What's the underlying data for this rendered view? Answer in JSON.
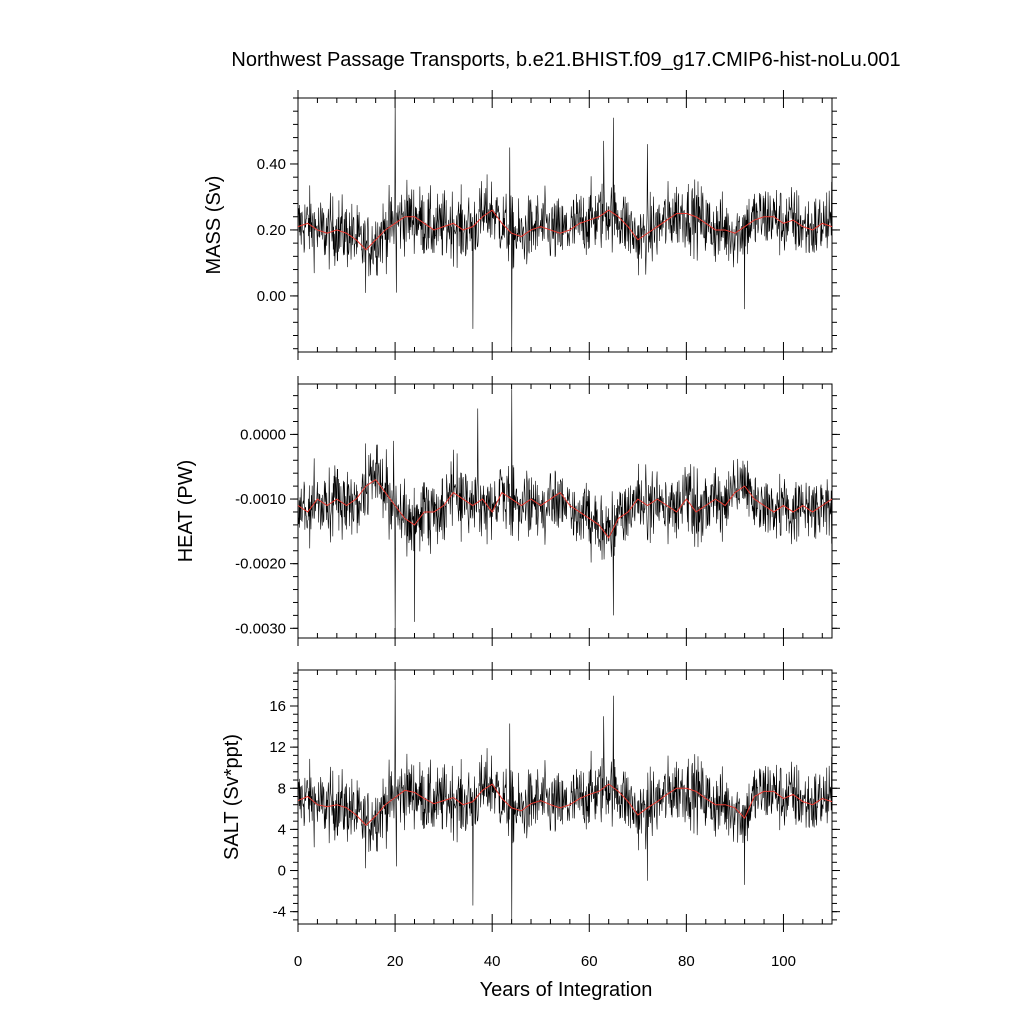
{
  "title": "Northwest Passage Transports, b.e21.BHIST.f09_g17.CMIP6-hist-noLu.001",
  "chart_data": {
    "type": "line",
    "xlabel": "Years of Integration",
    "xlim": [
      0,
      110
    ],
    "x_ticks": [
      0,
      20,
      40,
      60,
      80,
      100
    ],
    "x_tick_labels": [
      "0",
      "20",
      "40",
      "60",
      "80",
      "100"
    ],
    "series_colors": {
      "monthly": "#000000",
      "annual_mean": "#e8382f"
    },
    "panels": [
      {
        "name": "mass",
        "ylabel": "MASS (Sv)",
        "ylim": [
          -0.17,
          0.6
        ],
        "y_ticks": [
          0.0,
          0.2,
          0.4
        ],
        "y_tick_labels": [
          "0.00",
          "0.20",
          "0.40"
        ],
        "mean": 0.205,
        "noise": 0.075,
        "annual_mean": [
          [
            0,
            0.21
          ],
          [
            2,
            0.22
          ],
          [
            4,
            0.2
          ],
          [
            6,
            0.19
          ],
          [
            8,
            0.2
          ],
          [
            10,
            0.19
          ],
          [
            12,
            0.17
          ],
          [
            14,
            0.14
          ],
          [
            16,
            0.17
          ],
          [
            18,
            0.2
          ],
          [
            20,
            0.22
          ],
          [
            22,
            0.24
          ],
          [
            24,
            0.24
          ],
          [
            26,
            0.22
          ],
          [
            28,
            0.2
          ],
          [
            30,
            0.21
          ],
          [
            32,
            0.22
          ],
          [
            34,
            0.2
          ],
          [
            36,
            0.21
          ],
          [
            38,
            0.24
          ],
          [
            40,
            0.26
          ],
          [
            42,
            0.22
          ],
          [
            44,
            0.19
          ],
          [
            46,
            0.18
          ],
          [
            48,
            0.2
          ],
          [
            50,
            0.21
          ],
          [
            52,
            0.2
          ],
          [
            54,
            0.19
          ],
          [
            56,
            0.2
          ],
          [
            58,
            0.22
          ],
          [
            60,
            0.23
          ],
          [
            62,
            0.24
          ],
          [
            64,
            0.26
          ],
          [
            66,
            0.24
          ],
          [
            68,
            0.21
          ],
          [
            70,
            0.17
          ],
          [
            72,
            0.19
          ],
          [
            74,
            0.21
          ],
          [
            76,
            0.23
          ],
          [
            78,
            0.25
          ],
          [
            80,
            0.25
          ],
          [
            82,
            0.24
          ],
          [
            84,
            0.22
          ],
          [
            86,
            0.2
          ],
          [
            88,
            0.2
          ],
          [
            90,
            0.19
          ],
          [
            92,
            0.21
          ],
          [
            94,
            0.23
          ],
          [
            96,
            0.24
          ],
          [
            98,
            0.24
          ],
          [
            100,
            0.22
          ],
          [
            102,
            0.23
          ],
          [
            104,
            0.21
          ],
          [
            106,
            0.2
          ],
          [
            108,
            0.22
          ],
          [
            110,
            0.21
          ]
        ],
        "spikes": [
          [
            20,
            0.6
          ],
          [
            20.3,
            0.01
          ],
          [
            44,
            -0.17
          ],
          [
            43.6,
            0.45
          ],
          [
            36,
            -0.1
          ],
          [
            65,
            0.54
          ],
          [
            63,
            0.47
          ],
          [
            92,
            -0.04
          ],
          [
            72,
            0.46
          ]
        ]
      },
      {
        "name": "heat",
        "ylabel": "HEAT (PW)",
        "ylim": [
          -0.00315,
          0.00078
        ],
        "y_ticks": [
          0.0,
          -0.001,
          -0.002,
          -0.003
        ],
        "y_tick_labels": [
          "0.0000",
          "-0.0010",
          "-0.0020",
          "-0.0030"
        ],
        "mean": -0.00108,
        "noise": 0.00038,
        "annual_mean": [
          [
            0,
            -0.0011
          ],
          [
            2,
            -0.0012
          ],
          [
            4,
            -0.001
          ],
          [
            6,
            -0.0011
          ],
          [
            8,
            -0.001
          ],
          [
            10,
            -0.0011
          ],
          [
            12,
            -0.001
          ],
          [
            14,
            -0.0008
          ],
          [
            16,
            -0.0007
          ],
          [
            18,
            -0.0009
          ],
          [
            20,
            -0.0011
          ],
          [
            22,
            -0.0013
          ],
          [
            24,
            -0.0014
          ],
          [
            26,
            -0.0012
          ],
          [
            28,
            -0.0012
          ],
          [
            30,
            -0.0011
          ],
          [
            32,
            -0.0009
          ],
          [
            34,
            -0.001
          ],
          [
            36,
            -0.0011
          ],
          [
            38,
            -0.001
          ],
          [
            40,
            -0.0012
          ],
          [
            42,
            -0.0009
          ],
          [
            44,
            -0.001
          ],
          [
            46,
            -0.0011
          ],
          [
            48,
            -0.001
          ],
          [
            50,
            -0.0011
          ],
          [
            52,
            -0.001
          ],
          [
            54,
            -0.0009
          ],
          [
            56,
            -0.0011
          ],
          [
            58,
            -0.0012
          ],
          [
            60,
            -0.0013
          ],
          [
            62,
            -0.0014
          ],
          [
            64,
            -0.0016
          ],
          [
            66,
            -0.0013
          ],
          [
            68,
            -0.0012
          ],
          [
            70,
            -0.001
          ],
          [
            72,
            -0.0011
          ],
          [
            74,
            -0.001
          ],
          [
            76,
            -0.0011
          ],
          [
            78,
            -0.0012
          ],
          [
            80,
            -0.001
          ],
          [
            82,
            -0.0012
          ],
          [
            84,
            -0.0011
          ],
          [
            86,
            -0.001
          ],
          [
            88,
            -0.0011
          ],
          [
            90,
            -0.0009
          ],
          [
            92,
            -0.0008
          ],
          [
            94,
            -0.001
          ],
          [
            96,
            -0.0011
          ],
          [
            98,
            -0.0012
          ],
          [
            100,
            -0.0011
          ],
          [
            102,
            -0.0012
          ],
          [
            104,
            -0.0011
          ],
          [
            106,
            -0.0012
          ],
          [
            108,
            -0.0011
          ],
          [
            110,
            -0.001
          ]
        ],
        "spikes": [
          [
            20,
            -0.00315
          ],
          [
            19.7,
            -0.0001
          ],
          [
            44,
            0.0007
          ],
          [
            43.6,
            -0.0014
          ],
          [
            36,
            -0.0013
          ],
          [
            37,
            0.0004
          ],
          [
            65,
            -0.0028
          ],
          [
            24,
            -0.0029
          ]
        ]
      },
      {
        "name": "salt",
        "ylabel": "SALT (Sv*ppt)",
        "ylim": [
          -5.2,
          19.5
        ],
        "y_ticks": [
          -4,
          0,
          4,
          8,
          12,
          16
        ],
        "y_tick_labels": [
          "-4",
          "0",
          "4",
          "8",
          "12",
          "16"
        ],
        "mean": 6.6,
        "noise": 2.4,
        "annual_mean": [
          [
            0,
            6.8
          ],
          [
            2,
            7.2
          ],
          [
            4,
            6.4
          ],
          [
            6,
            6.2
          ],
          [
            8,
            6.4
          ],
          [
            10,
            6.1
          ],
          [
            12,
            5.4
          ],
          [
            14,
            4.4
          ],
          [
            16,
            5.3
          ],
          [
            18,
            6.4
          ],
          [
            20,
            7.1
          ],
          [
            22,
            7.8
          ],
          [
            24,
            7.6
          ],
          [
            26,
            7.0
          ],
          [
            28,
            6.5
          ],
          [
            30,
            6.8
          ],
          [
            32,
            7.1
          ],
          [
            34,
            6.4
          ],
          [
            36,
            6.7
          ],
          [
            38,
            7.8
          ],
          [
            40,
            8.4
          ],
          [
            42,
            7.0
          ],
          [
            44,
            6.1
          ],
          [
            46,
            5.8
          ],
          [
            48,
            6.5
          ],
          [
            50,
            6.8
          ],
          [
            52,
            6.4
          ],
          [
            54,
            6.1
          ],
          [
            56,
            6.4
          ],
          [
            58,
            7.0
          ],
          [
            60,
            7.4
          ],
          [
            62,
            7.7
          ],
          [
            64,
            8.4
          ],
          [
            66,
            7.7
          ],
          [
            68,
            6.7
          ],
          [
            70,
            5.4
          ],
          [
            72,
            6.1
          ],
          [
            74,
            6.7
          ],
          [
            76,
            7.4
          ],
          [
            78,
            8.0
          ],
          [
            80,
            8.0
          ],
          [
            82,
            7.7
          ],
          [
            84,
            7.0
          ],
          [
            86,
            6.4
          ],
          [
            88,
            6.4
          ],
          [
            90,
            6.1
          ],
          [
            92,
            5.1
          ],
          [
            94,
            7.2
          ],
          [
            96,
            7.7
          ],
          [
            98,
            7.7
          ],
          [
            100,
            7.0
          ],
          [
            102,
            7.4
          ],
          [
            104,
            6.7
          ],
          [
            106,
            6.4
          ],
          [
            108,
            7.0
          ],
          [
            110,
            6.7
          ]
        ],
        "spikes": [
          [
            20,
            19.5
          ],
          [
            20.3,
            0.4
          ],
          [
            44,
            -5.2
          ],
          [
            43.6,
            14.3
          ],
          [
            36,
            -3.4
          ],
          [
            65,
            17.0
          ],
          [
            63,
            15.0
          ],
          [
            92,
            -1.4
          ],
          [
            72,
            -1.0
          ]
        ]
      }
    ]
  }
}
